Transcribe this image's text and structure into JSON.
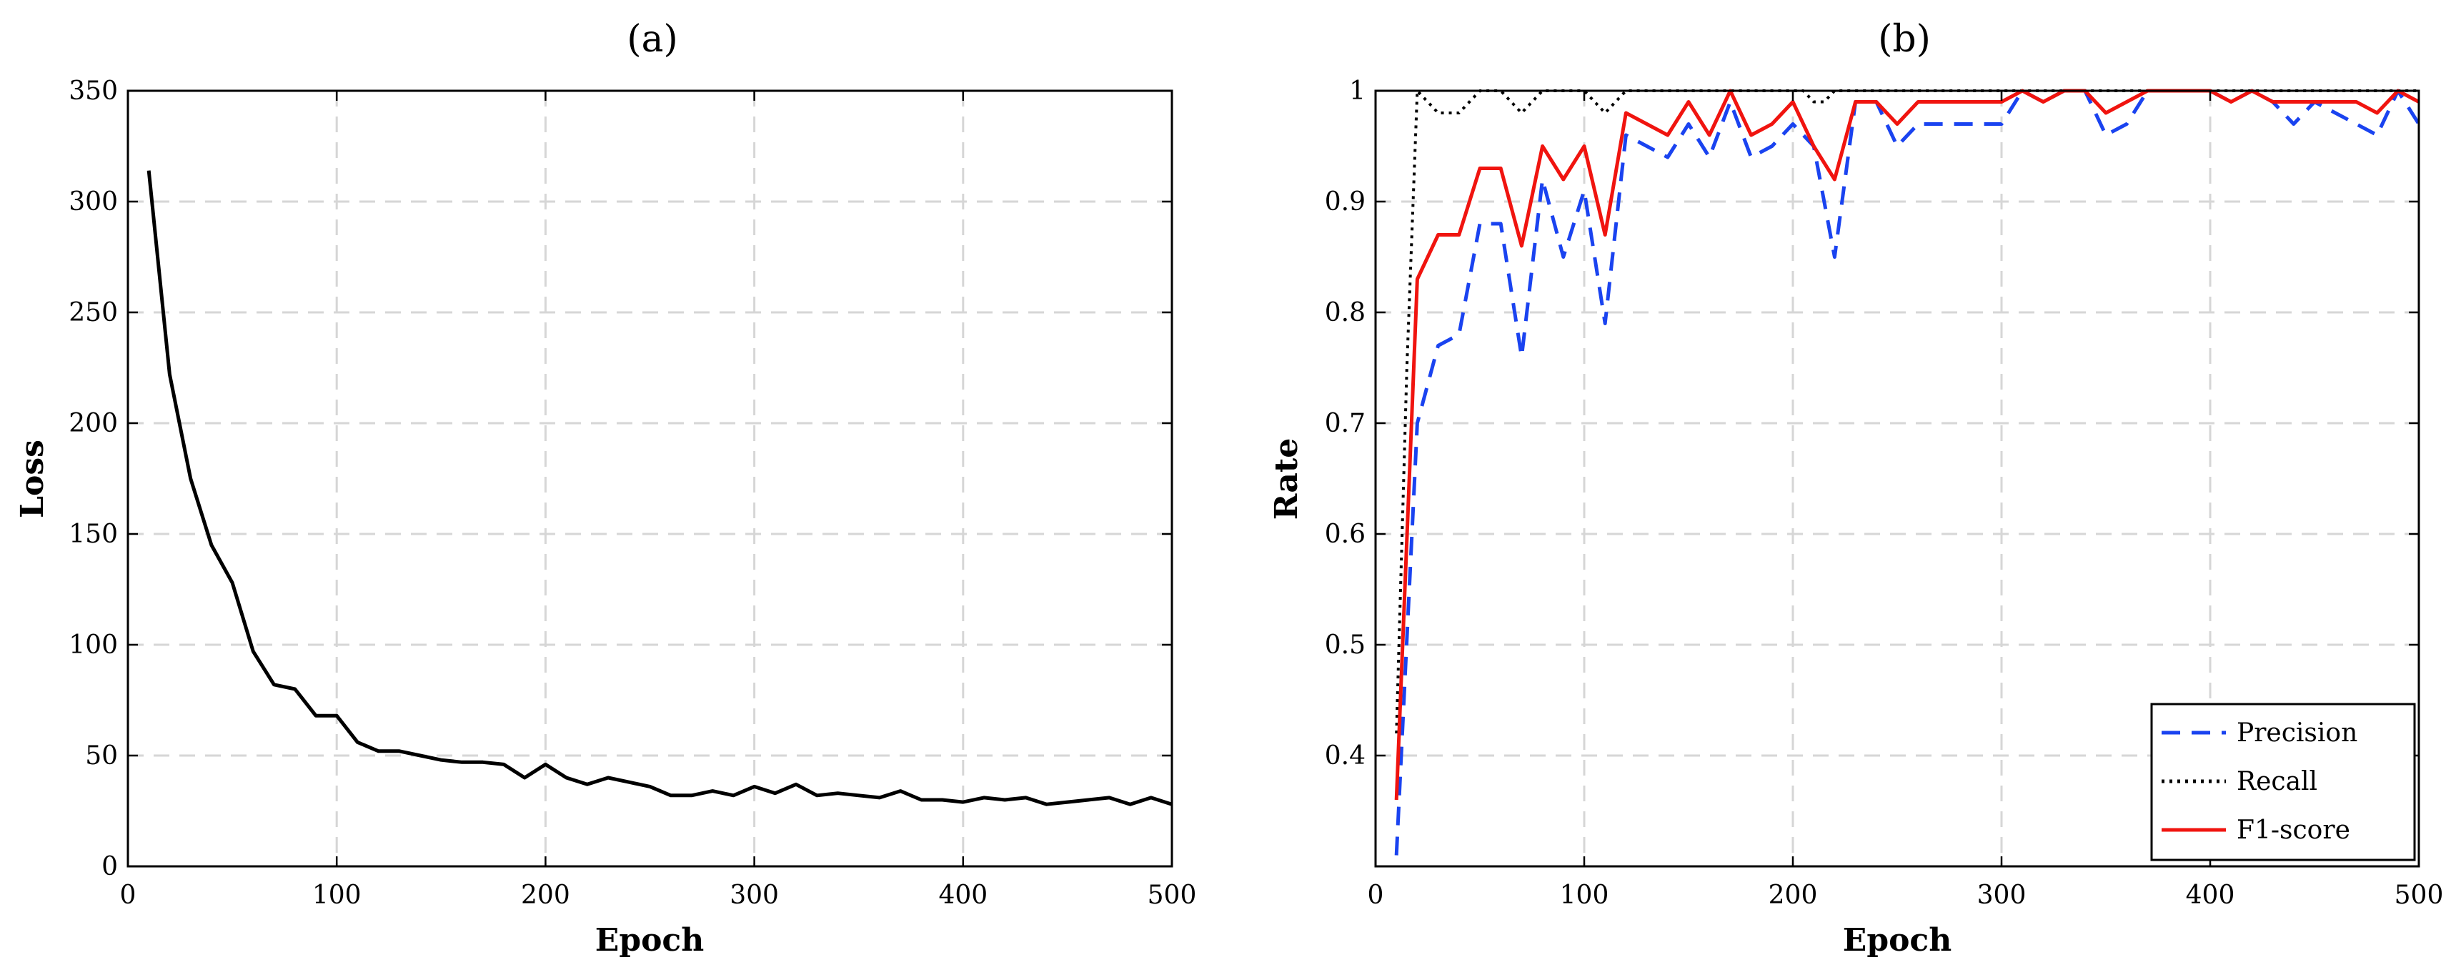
{
  "chart_data": [
    {
      "type": "line",
      "panel_label": "(a)",
      "title": "",
      "xlabel": "Epoch",
      "ylabel": "Loss",
      "xlim": [
        0,
        500
      ],
      "ylim": [
        0,
        350
      ],
      "xticks": [
        0,
        100,
        200,
        300,
        400,
        500
      ],
      "yticks": [
        0,
        50,
        100,
        150,
        200,
        250,
        300,
        350
      ],
      "grid": true,
      "series": [
        {
          "name": "Loss",
          "color": "#000000",
          "style": "solid",
          "x": [
            10,
            20,
            30,
            40,
            50,
            60,
            70,
            80,
            90,
            100,
            110,
            120,
            130,
            140,
            150,
            160,
            170,
            180,
            190,
            200,
            210,
            220,
            230,
            240,
            250,
            260,
            270,
            280,
            290,
            300,
            310,
            320,
            330,
            340,
            350,
            360,
            370,
            380,
            390,
            400,
            410,
            420,
            430,
            440,
            450,
            460,
            470,
            480,
            490,
            500
          ],
          "y": [
            314,
            222,
            175,
            145,
            128,
            97,
            82,
            80,
            68,
            68,
            56,
            52,
            52,
            50,
            48,
            47,
            47,
            46,
            40,
            46,
            40,
            37,
            40,
            38,
            36,
            32,
            32,
            34,
            32,
            36,
            33,
            37,
            32,
            33,
            32,
            31,
            34,
            30,
            30,
            29,
            31,
            30,
            31,
            28,
            29,
            30,
            31,
            28,
            31,
            28
          ]
        }
      ]
    },
    {
      "type": "line",
      "panel_label": "(b)",
      "title": "",
      "xlabel": "Epoch",
      "ylabel": "Rate",
      "xlim": [
        0,
        500
      ],
      "ylim": [
        0.3,
        1.0
      ],
      "xticks": [
        0,
        100,
        200,
        300,
        400,
        500
      ],
      "yticks": [
        0.4,
        0.5,
        0.6,
        0.7,
        0.8,
        0.9,
        1
      ],
      "ytick_labels": [
        "0.4",
        "0.5",
        "0.6",
        "0.7",
        "0.8",
        "0.9",
        "1"
      ],
      "grid": true,
      "legend_position": "bottom-right",
      "series": [
        {
          "name": "Precision",
          "color": "#1a43f0",
          "style": "dashed",
          "x": [
            10,
            20,
            30,
            40,
            50,
            60,
            70,
            80,
            90,
            100,
            110,
            120,
            130,
            140,
            150,
            160,
            170,
            180,
            190,
            200,
            210,
            220,
            230,
            240,
            250,
            260,
            270,
            280,
            290,
            300,
            310,
            320,
            330,
            340,
            350,
            360,
            370,
            380,
            390,
            400,
            410,
            420,
            430,
            440,
            450,
            460,
            470,
            480,
            490,
            500
          ],
          "y": [
            0.31,
            0.7,
            0.77,
            0.78,
            0.88,
            0.88,
            0.76,
            0.92,
            0.85,
            0.91,
            0.79,
            0.96,
            0.95,
            0.94,
            0.97,
            0.94,
            0.99,
            0.94,
            0.95,
            0.97,
            0.95,
            0.85,
            0.99,
            0.99,
            0.95,
            0.97,
            0.97,
            0.97,
            0.97,
            0.97,
            1.0,
            0.99,
            1.0,
            1.0,
            0.96,
            0.97,
            1.0,
            1.0,
            1.0,
            1.0,
            0.99,
            1.0,
            0.99,
            0.97,
            0.99,
            0.98,
            0.97,
            0.96,
            1.0,
            0.97
          ]
        },
        {
          "name": "Recall",
          "color": "#000000",
          "style": "dotted",
          "x": [
            10,
            15,
            20,
            25,
            30,
            35,
            40,
            45,
            50,
            55,
            60,
            65,
            70,
            75,
            80,
            90,
            100,
            105,
            110,
            115,
            120,
            200,
            205,
            210,
            215,
            220,
            225,
            230,
            500
          ],
          "y": [
            0.42,
            0.75,
            1.0,
            0.99,
            0.98,
            0.98,
            0.98,
            0.99,
            1.0,
            1.0,
            1.0,
            0.99,
            0.98,
            0.99,
            1.0,
            1.0,
            1.0,
            0.99,
            0.98,
            0.99,
            1.0,
            1.0,
            1.0,
            0.99,
            0.99,
            1.0,
            1.0,
            1.0,
            1.0
          ]
        },
        {
          "name": "F1-score",
          "color": "#f0140f",
          "style": "solid",
          "x": [
            10,
            20,
            30,
            40,
            50,
            60,
            70,
            80,
            90,
            100,
            110,
            120,
            130,
            140,
            150,
            160,
            170,
            180,
            190,
            200,
            210,
            220,
            230,
            240,
            250,
            260,
            270,
            280,
            290,
            300,
            310,
            320,
            330,
            340,
            350,
            360,
            370,
            380,
            390,
            400,
            410,
            420,
            430,
            440,
            450,
            460,
            470,
            480,
            490,
            500
          ],
          "y": [
            0.36,
            0.83,
            0.87,
            0.87,
            0.93,
            0.93,
            0.86,
            0.95,
            0.92,
            0.95,
            0.87,
            0.98,
            0.97,
            0.96,
            0.99,
            0.96,
            1.0,
            0.96,
            0.97,
            0.99,
            0.95,
            0.92,
            0.99,
            0.99,
            0.97,
            0.99,
            0.99,
            0.99,
            0.99,
            0.99,
            1.0,
            0.99,
            1.0,
            1.0,
            0.98,
            0.99,
            1.0,
            1.0,
            1.0,
            1.0,
            0.99,
            1.0,
            0.99,
            0.99,
            0.99,
            0.99,
            0.99,
            0.98,
            1.0,
            0.99
          ]
        }
      ]
    }
  ]
}
